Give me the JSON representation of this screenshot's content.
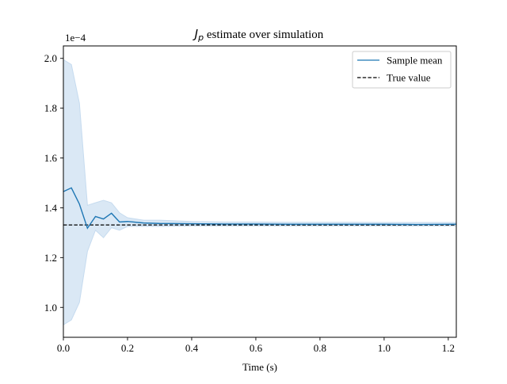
{
  "chart_data": {
    "type": "line",
    "title_main": "J",
    "title_sub": "p",
    "title_rest": " estimate over simulation",
    "xlabel": "Time (s)",
    "ylabel": "",
    "y_offset_label": "1e−4",
    "xlim": [
      0.0,
      1.225
    ],
    "ylim": [
      0.88,
      2.05
    ],
    "x_ticks": [
      0.0,
      0.2,
      0.4,
      0.6,
      0.8,
      1.0,
      1.2
    ],
    "x_tick_labels": [
      "0.0",
      "0.2",
      "0.4",
      "0.6",
      "0.8",
      "1.0",
      "1.2"
    ],
    "y_ticks": [
      1.0,
      1.2,
      1.4,
      1.6,
      1.8,
      2.0
    ],
    "y_tick_labels": [
      "1.0",
      "1.2",
      "1.4",
      "1.6",
      "1.8",
      "2.0"
    ],
    "grid": false,
    "legend_position": "top-right",
    "legend": [
      "Sample mean",
      "True value"
    ],
    "colors": {
      "mean": "#1f77b4",
      "band": "#c6dbef",
      "true": "#000000"
    },
    "true_value": 1.331,
    "series": [
      {
        "name": "Sample mean",
        "x": [
          0.0,
          0.025,
          0.05,
          0.075,
          0.1,
          0.125,
          0.15,
          0.175,
          0.2,
          0.25,
          0.3,
          0.4,
          0.5,
          0.6,
          0.7,
          0.8,
          0.9,
          1.0,
          1.1,
          1.225
        ],
        "y": [
          1.465,
          1.48,
          1.415,
          1.318,
          1.365,
          1.355,
          1.378,
          1.343,
          1.345,
          1.339,
          1.337,
          1.336,
          1.335,
          1.335,
          1.334,
          1.334,
          1.334,
          1.334,
          1.333,
          1.334
        ],
        "lower": [
          0.93,
          0.95,
          1.02,
          1.225,
          1.31,
          1.28,
          1.32,
          1.31,
          1.325,
          1.326,
          1.325,
          1.327,
          1.327,
          1.327,
          1.327,
          1.327,
          1.327,
          1.327,
          1.327,
          1.327
        ],
        "upper": [
          1.995,
          1.975,
          1.82,
          1.41,
          1.42,
          1.43,
          1.42,
          1.38,
          1.36,
          1.35,
          1.35,
          1.345,
          1.343,
          1.343,
          1.342,
          1.342,
          1.342,
          1.341,
          1.341,
          1.341
        ]
      }
    ]
  }
}
